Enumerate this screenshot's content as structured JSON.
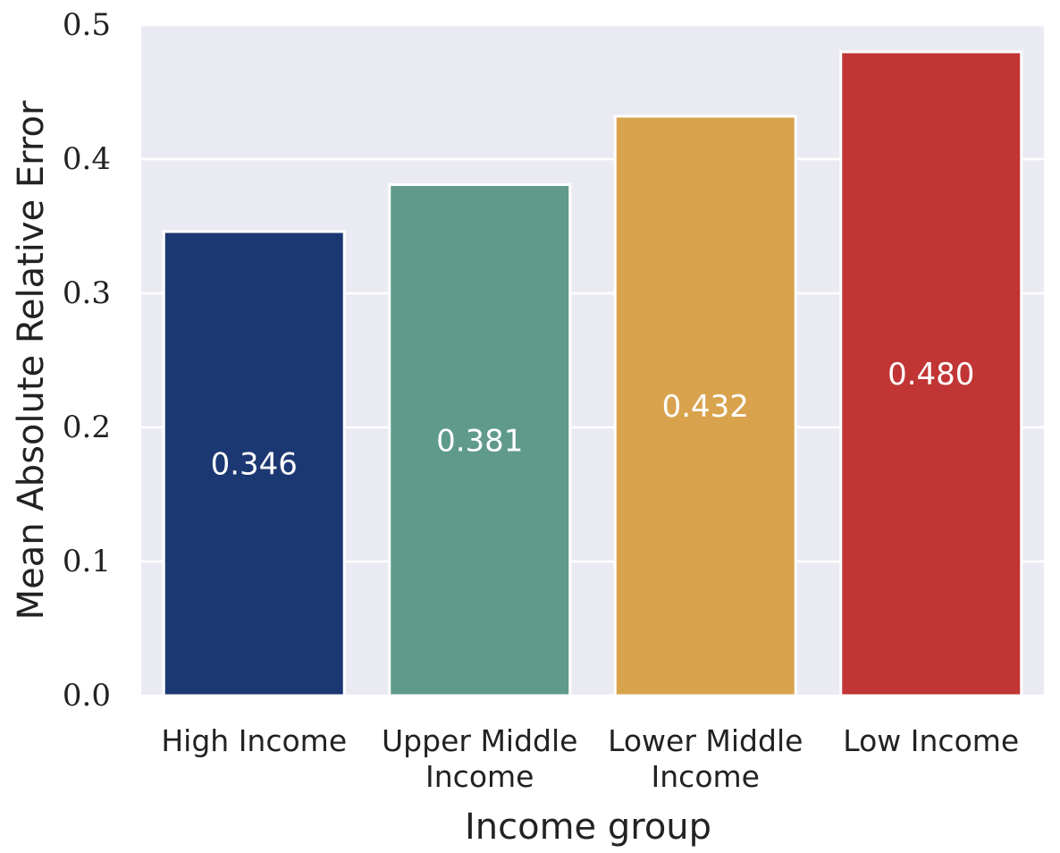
{
  "chart_data": {
    "type": "bar",
    "categories": [
      [
        "High Income"
      ],
      [
        "Upper Middle",
        "Income"
      ],
      [
        "Lower Middle",
        "Income"
      ],
      [
        "Low Income"
      ]
    ],
    "values": [
      0.346,
      0.381,
      0.432,
      0.48
    ],
    "value_labels": [
      "0.346",
      "0.381",
      "0.432",
      "0.480"
    ],
    "colors": [
      "#1c3873",
      "#5f9a8a",
      "#d9a34e",
      "#c13535"
    ],
    "xlabel": "Income group",
    "ylabel": "Mean Absolute Relative Error",
    "ylim": [
      0,
      0.5
    ],
    "yticks": [
      0.0,
      0.1,
      0.2,
      0.3,
      0.4,
      0.5
    ],
    "ytick_labels": [
      "0.0",
      "0.1",
      "0.2",
      "0.3",
      "0.4",
      "0.5"
    ],
    "grid": true,
    "background": "#eaeaf2",
    "legend": null
  }
}
